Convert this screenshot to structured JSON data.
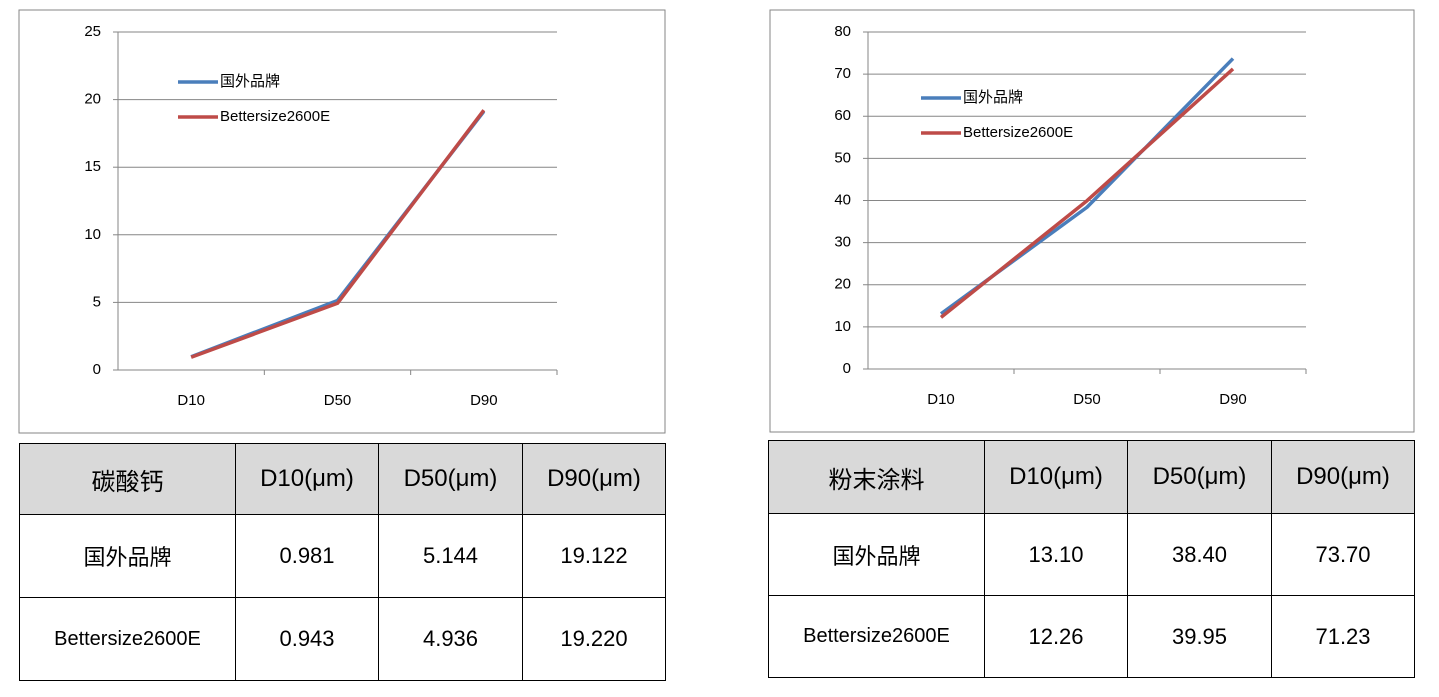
{
  "chart_data": [
    {
      "type": "line",
      "categories": [
        "D10",
        "D50",
        "D90"
      ],
      "series": [
        {
          "name": "国外品牌",
          "color": "#4a7ebb",
          "values": [
            0.981,
            5.144,
            19.122
          ]
        },
        {
          "name": "Bettersize2600E",
          "color": "#be4b48",
          "values": [
            0.943,
            4.936,
            19.22
          ]
        }
      ],
      "ylim": [
        0,
        25
      ],
      "yticks": [
        0,
        5,
        10,
        15,
        20,
        25
      ],
      "grid": true,
      "legend": "upper left"
    },
    {
      "type": "line",
      "categories": [
        "D10",
        "D50",
        "D90"
      ],
      "series": [
        {
          "name": "国外品牌",
          "color": "#4a7ebb",
          "values": [
            13.1,
            38.4,
            73.7
          ]
        },
        {
          "name": "Bettersize2600E",
          "color": "#be4b48",
          "values": [
            12.26,
            39.95,
            71.23
          ]
        }
      ],
      "ylim": [
        0,
        80
      ],
      "yticks": [
        0,
        10,
        20,
        30,
        40,
        50,
        60,
        70,
        80
      ],
      "grid": true,
      "legend": "upper left"
    }
  ],
  "tables": [
    {
      "header": [
        "碳酸钙",
        "D10(μm)",
        "D50(μm)",
        "D90(μm)"
      ],
      "rows": [
        [
          "国外品牌",
          "0.981",
          "5.144",
          "19.122"
        ],
        [
          "Bettersize2600E",
          "0.943",
          "4.936",
          "19.220"
        ]
      ]
    },
    {
      "header": [
        "粉末涂料",
        "D10(μm)",
        "D50(μm)",
        "D90(μm)"
      ],
      "rows": [
        [
          "国外品牌",
          "13.10",
          "38.40",
          "73.70"
        ],
        [
          "Bettersize2600E",
          "12.26",
          "39.95",
          "71.23"
        ]
      ]
    }
  ]
}
